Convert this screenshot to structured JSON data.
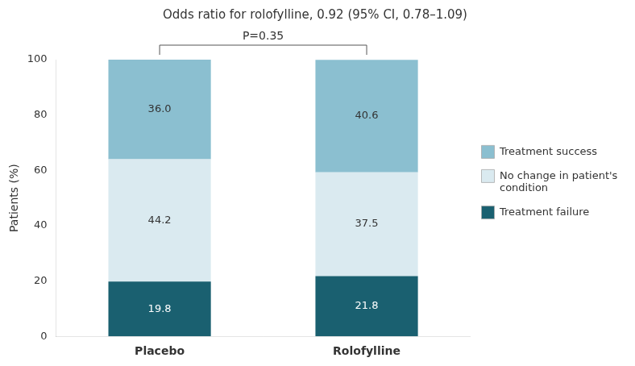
{
  "chart_data": {
    "type": "bar",
    "stacked": true,
    "title": "Odds ratio for rolofylline, 0.92 (95% CI, 0.78–1.09)",
    "ylabel": "Patients (%)",
    "categories": [
      "Placebo",
      "Rolofylline"
    ],
    "series": [
      {
        "name": "Treatment failure",
        "color": "#1a6070",
        "values": [
          19.8,
          21.8
        ]
      },
      {
        "name": "No change in patient's\ncondition",
        "color": "#daeaf0",
        "values": [
          44.2,
          37.5
        ]
      },
      {
        "name": "Treatment success",
        "color": "#8bbfd0",
        "values": [
          36.0,
          40.6
        ],
        "value_labels": [
          "36.0",
          "40.6"
        ]
      }
    ],
    "ylim": [
      0,
      100
    ],
    "yticks": [
      0,
      20,
      40,
      60,
      80,
      100
    ],
    "grid": false,
    "legend": "right",
    "data_labels": true,
    "annotations": [
      "P=0.35"
    ]
  }
}
